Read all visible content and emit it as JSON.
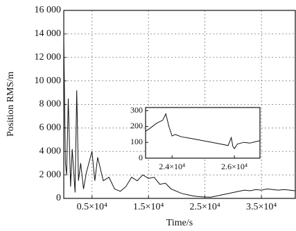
{
  "chart_data": [
    {
      "type": "line",
      "y_label": "Position RMS/m",
      "x_label": "Time/s",
      "color": "#111111",
      "grid": true,
      "xlim": [
        0,
        41000
      ],
      "ylim": [
        0,
        16000
      ],
      "xticks": [
        {
          "value": 5000,
          "label": "0.5×10⁴"
        },
        {
          "value": 15000,
          "label": "1.5×10⁴"
        },
        {
          "value": 25000,
          "label": "2.5×10⁴"
        },
        {
          "value": 35000,
          "label": "3.5×10⁴"
        }
      ],
      "yticks": [
        0,
        {
          "value": 2000,
          "label": "2 000"
        },
        {
          "value": 4000,
          "label": "4 000"
        },
        {
          "value": 6000,
          "label": "6 000"
        },
        {
          "value": 8000,
          "label": "8 000"
        },
        {
          "value": 10000,
          "label": "10 000"
        },
        {
          "value": 12000,
          "label": "12 000"
        },
        {
          "value": 14000,
          "label": "14 000"
        },
        {
          "value": 16000,
          "label": "16 000"
        }
      ],
      "x": [
        0,
        300,
        500,
        800,
        1200,
        1500,
        2000,
        2300,
        2600,
        3000,
        3500,
        4000,
        5000,
        5500,
        6000,
        7000,
        8000,
        9000,
        10000,
        11000,
        12000,
        13000,
        14000,
        15000,
        16000,
        17000,
        18000,
        19000,
        20000,
        21000,
        22000,
        23000,
        24000,
        25000,
        26000,
        27000,
        28000,
        29000,
        30000,
        31000,
        32000,
        33000,
        34000,
        35000,
        36000,
        37000,
        38000,
        39000,
        40000,
        41000
      ],
      "values": [
        13500,
        3000,
        2000,
        8500,
        1000,
        4200,
        500,
        9200,
        1500,
        3000,
        800,
        2200,
        4000,
        1500,
        3500,
        1500,
        1800,
        800,
        600,
        1000,
        1800,
        1500,
        2000,
        1700,
        1800,
        1200,
        1300,
        800,
        600,
        400,
        300,
        200,
        150,
        120,
        100,
        200,
        300,
        400,
        500,
        600,
        700,
        650,
        750,
        700,
        800,
        750,
        700,
        750,
        700,
        650
      ]
    },
    {
      "type": "line",
      "color": "#111111",
      "grid": false,
      "xlim": [
        23150,
        26820
      ],
      "ylim": [
        0,
        320
      ],
      "xticks": [
        {
          "value": 24000,
          "label": "2.4×10⁴"
        },
        {
          "value": 26000,
          "label": "2.6×10⁴"
        }
      ],
      "yticks": [
        0,
        100,
        200,
        300
      ],
      "x": [
        23150,
        23300,
        23500,
        23700,
        23800,
        23900,
        24000,
        24100,
        24300,
        24600,
        25000,
        25400,
        25800,
        25900,
        25950,
        26000,
        26100,
        26300,
        26500,
        26700,
        26820
      ],
      "values": [
        170,
        190,
        220,
        240,
        280,
        200,
        140,
        150,
        135,
        125,
        110,
        95,
        80,
        130,
        75,
        60,
        90,
        100,
        95,
        105,
        110
      ]
    }
  ]
}
